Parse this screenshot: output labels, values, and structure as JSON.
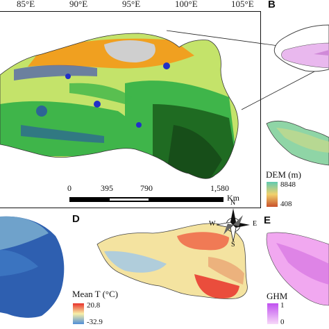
{
  "longitudes": [
    "85°E",
    "90°E",
    "95°E",
    "100°E",
    "105°E"
  ],
  "panels": {
    "b": "B",
    "d": "D",
    "e": "E"
  },
  "scale_bar": {
    "ticks": [
      "0",
      "395",
      "790",
      "1,580"
    ],
    "unit": "Km"
  },
  "legends": {
    "dem": {
      "title": "DEM (m)",
      "max": "8848",
      "min": "408"
    },
    "mean_t": {
      "title": "Mean T (°C)",
      "max": "20.8",
      "min": "-32.9"
    },
    "ghm": {
      "title": "GHM",
      "max": "1",
      "min": "0"
    }
  },
  "compass": {
    "n": "N",
    "s": "S",
    "e": "E",
    "w": "W"
  },
  "colors": {
    "forest": "#1f6b22",
    "grassland": "#3fb54a",
    "meadow": "#c4e36a",
    "desert": "#cfcfcf",
    "barren": "#f0a020",
    "water": "#2230c8",
    "dem_high": "#5fcab0",
    "dem_low": "#c8502a",
    "temp_high": "#e8322a",
    "temp_low": "#4f8ed8",
    "ghm_high": "#c050f0"
  }
}
